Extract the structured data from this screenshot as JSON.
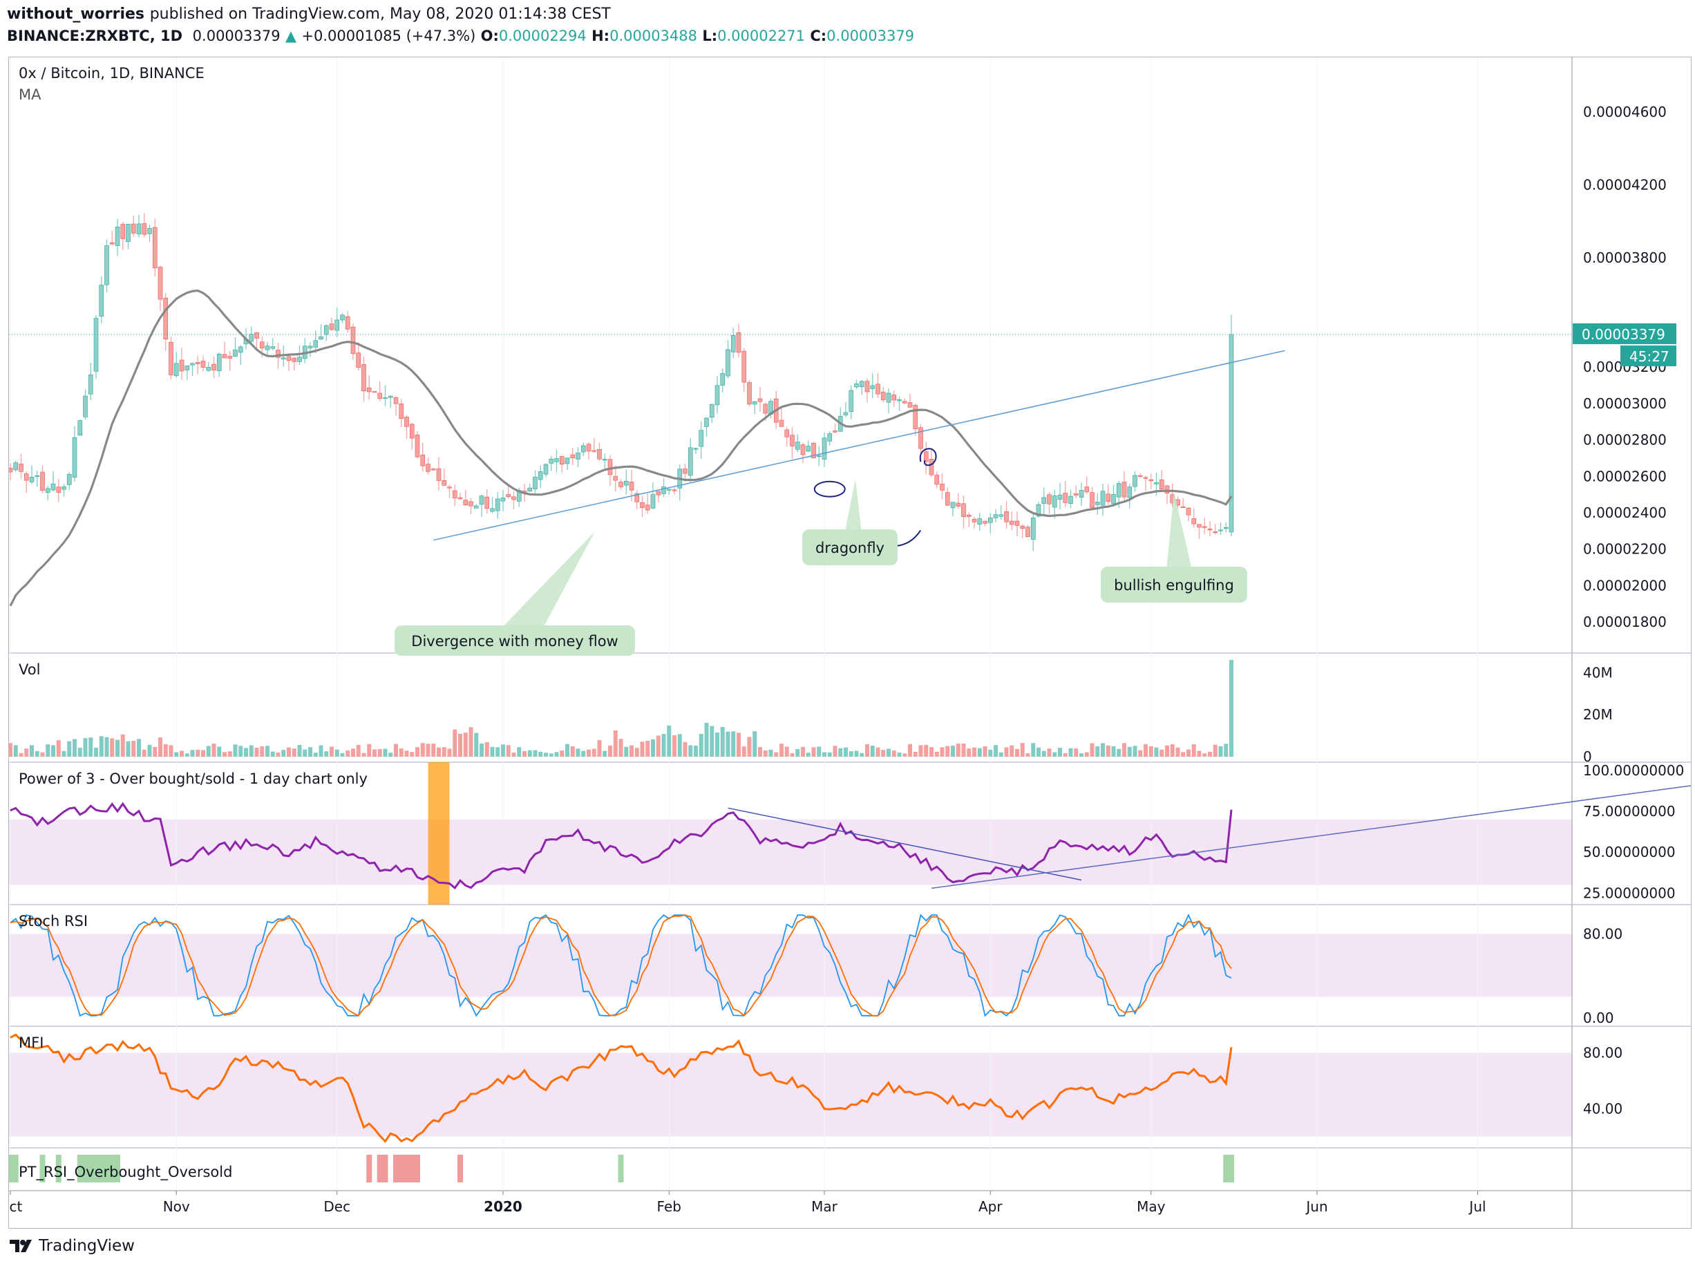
{
  "header": {
    "publisher": "without_worries",
    "published_text": "published on TradingView.com, May 08, 2020 01:14:38 CEST",
    "symbol": "BINANCE:ZRXBTC, 1D",
    "last": "0.00003379",
    "change": "+0.00001085 (+47.3%)",
    "o_label": "O:",
    "o": "0.00002294",
    "h_label": "H:",
    "h": "0.00003488",
    "l_label": "L:",
    "l": "0.00002271",
    "c_label": "C:",
    "c": "0.00003379"
  },
  "footer": {
    "brand": "TradingView"
  },
  "chart_data": {
    "type": "candlestick",
    "title": "0x / Bitcoin, 1D, BINANCE",
    "overlay_label": "MA",
    "price_axis": {
      "ticks": [
        "0.00004600",
        "0.00004200",
        "0.00003800",
        "0.00003200",
        "0.00003000",
        "0.00002800",
        "0.00002600",
        "0.00002400",
        "0.00002200",
        "0.00002000",
        "0.00001800"
      ],
      "tick_values": [
        4.6,
        4.2,
        3.8,
        3.2,
        3.0,
        2.8,
        2.6,
        2.4,
        2.2,
        2.0,
        1.8
      ],
      "range": [
        1.63,
        4.9
      ],
      "unit_multiplier": "1e-5",
      "last_price_label": "0.00003379",
      "last_price": 3.379,
      "countdown": "45:27"
    },
    "x_axis": {
      "labels": [
        "Oct",
        "Nov",
        "Dec",
        "2020",
        "Feb",
        "Mar",
        "Apr",
        "May",
        "Jun",
        "Jul"
      ],
      "label_day_index": [
        0,
        31,
        61,
        92,
        123,
        152,
        183,
        213,
        244,
        274
      ]
    },
    "candles_summary": {
      "first_date": "Oct 1, 2019",
      "anchors": [
        [
          0,
          2.66
        ],
        [
          10,
          2.5
        ],
        [
          15,
          3.2
        ],
        [
          18,
          3.9
        ],
        [
          22,
          3.95
        ],
        [
          26,
          3.95
        ],
        [
          30,
          3.2
        ],
        [
          38,
          3.2
        ],
        [
          45,
          3.4
        ],
        [
          52,
          3.2
        ],
        [
          58,
          3.4
        ],
        [
          62,
          3.5
        ],
        [
          66,
          3.1
        ],
        [
          72,
          3.0
        ],
        [
          78,
          2.62
        ],
        [
          84,
          2.48
        ],
        [
          94,
          2.44
        ],
        [
          99,
          2.65
        ],
        [
          106,
          2.75
        ],
        [
          111,
          2.68
        ],
        [
          118,
          2.44
        ],
        [
          124,
          2.55
        ],
        [
          130,
          2.88
        ],
        [
          135,
          3.35
        ],
        [
          138,
          3.02
        ],
        [
          142,
          2.98
        ],
        [
          146,
          2.8
        ],
        [
          150,
          2.7
        ],
        [
          154,
          2.85
        ],
        [
          158,
          3.1
        ],
        [
          163,
          3.05
        ],
        [
          167,
          3.02
        ],
        [
          170,
          2.78
        ],
        [
          174,
          2.5
        ],
        [
          180,
          2.35
        ],
        [
          186,
          2.35
        ],
        [
          190,
          2.3
        ],
        [
          193,
          2.48
        ],
        [
          197,
          2.5
        ],
        [
          203,
          2.46
        ],
        [
          210,
          2.56
        ],
        [
          214,
          2.55
        ],
        [
          218,
          2.4
        ],
        [
          222,
          2.36
        ],
        [
          227,
          2.29
        ],
        [
          228,
          3.379
        ]
      ],
      "last_candle": {
        "open": 2.294,
        "high": 3.488,
        "low": 2.271,
        "close": 3.379
      }
    },
    "annotations": [
      {
        "text": "Divergence with money flow"
      },
      {
        "text": "dragonfly"
      },
      {
        "text": "bullish engulfing"
      }
    ],
    "volume_panel": {
      "label": "Vol",
      "ticks": [
        "40M",
        "20M",
        "0"
      ],
      "tick_values": [
        40,
        20,
        0
      ],
      "range": [
        0,
        46
      ],
      "last_bar": 46,
      "spike_period_value": 18
    },
    "power_panel": {
      "label": "Power of 3 - Over bought/sold - 1 day chart only",
      "ticks": [
        "100.00000000",
        "75.00000000",
        "50.00000000",
        "25.00000000"
      ],
      "tick_values": [
        100,
        75,
        50,
        25
      ],
      "range": [
        18,
        105
      ],
      "band": [
        30,
        70
      ],
      "series_anchors": [
        [
          0,
          76
        ],
        [
          5,
          68
        ],
        [
          10,
          74
        ],
        [
          15,
          76
        ],
        [
          20,
          78
        ],
        [
          25,
          72
        ],
        [
          28,
          72
        ],
        [
          30,
          44
        ],
        [
          38,
          52
        ],
        [
          45,
          56
        ],
        [
          52,
          50
        ],
        [
          58,
          58
        ],
        [
          62,
          48
        ],
        [
          68,
          42
        ],
        [
          75,
          38
        ],
        [
          80,
          30
        ],
        [
          85,
          30
        ],
        [
          90,
          36
        ],
        [
          96,
          40
        ],
        [
          100,
          55
        ],
        [
          106,
          62
        ],
        [
          112,
          52
        ],
        [
          118,
          44
        ],
        [
          124,
          56
        ],
        [
          130,
          64
        ],
        [
          135,
          76
        ],
        [
          140,
          58
        ],
        [
          146,
          52
        ],
        [
          152,
          58
        ],
        [
          155,
          66
        ],
        [
          160,
          56
        ],
        [
          166,
          54
        ],
        [
          170,
          46
        ],
        [
          176,
          34
        ],
        [
          182,
          38
        ],
        [
          188,
          38
        ],
        [
          192,
          44
        ],
        [
          196,
          58
        ],
        [
          200,
          54
        ],
        [
          206,
          52
        ],
        [
          210,
          50
        ],
        [
          214,
          62
        ],
        [
          217,
          48
        ],
        [
          221,
          52
        ],
        [
          224,
          44
        ],
        [
          227,
          43
        ],
        [
          228,
          76
        ]
      ],
      "highlight_day_range": [
        78,
        82
      ],
      "highlight_color": "#ff9800"
    },
    "stoch_panel": {
      "label": "Stoch RSI",
      "ticks": [
        "80.00",
        "0.00"
      ],
      "tick_values": [
        80,
        0
      ],
      "range": [
        -8,
        108
      ],
      "band": [
        20,
        80
      ],
      "k_color": "#2196f3",
      "d_color": "#ff6d00"
    },
    "mfi_panel": {
      "label": "MFI",
      "ticks": [
        "80.00",
        "40.00"
      ],
      "tick_values": [
        80,
        40
      ],
      "range": [
        12,
        99
      ],
      "band": [
        20,
        80
      ],
      "series_anchors": [
        [
          0,
          92
        ],
        [
          6,
          84
        ],
        [
          10,
          76
        ],
        [
          14,
          80
        ],
        [
          18,
          84
        ],
        [
          22,
          86
        ],
        [
          26,
          80
        ],
        [
          30,
          56
        ],
        [
          34,
          48
        ],
        [
          38,
          54
        ],
        [
          42,
          76
        ],
        [
          46,
          74
        ],
        [
          50,
          70
        ],
        [
          54,
          62
        ],
        [
          58,
          58
        ],
        [
          62,
          64
        ],
        [
          64,
          46
        ],
        [
          66,
          28
        ],
        [
          70,
          20
        ],
        [
          76,
          20
        ],
        [
          80,
          32
        ],
        [
          84,
          44
        ],
        [
          88,
          52
        ],
        [
          92,
          60
        ],
        [
          96,
          66
        ],
        [
          100,
          56
        ],
        [
          104,
          62
        ],
        [
          108,
          72
        ],
        [
          112,
          80
        ],
        [
          116,
          84
        ],
        [
          120,
          70
        ],
        [
          124,
          64
        ],
        [
          128,
          76
        ],
        [
          132,
          82
        ],
        [
          136,
          86
        ],
        [
          140,
          64
        ],
        [
          146,
          60
        ],
        [
          152,
          42
        ],
        [
          156,
          38
        ],
        [
          160,
          48
        ],
        [
          164,
          56
        ],
        [
          168,
          52
        ],
        [
          172,
          48
        ],
        [
          176,
          46
        ],
        [
          180,
          42
        ],
        [
          184,
          44
        ],
        [
          186,
          34
        ],
        [
          190,
          36
        ],
        [
          194,
          44
        ],
        [
          198,
          56
        ],
        [
          202,
          52
        ],
        [
          206,
          46
        ],
        [
          210,
          50
        ],
        [
          214,
          56
        ],
        [
          217,
          64
        ],
        [
          220,
          66
        ],
        [
          224,
          62
        ],
        [
          227,
          60
        ],
        [
          228,
          84
        ]
      ]
    },
    "pt_rsi_panel": {
      "label": "PT_RSI_Overbought_Oversold",
      "green_day_ranges": [
        [
          0,
          1
        ],
        [
          6,
          6
        ],
        [
          9,
          9
        ],
        [
          13,
          20
        ],
        [
          114,
          114
        ],
        [
          227,
          228
        ]
      ],
      "red_day_ranges": [
        [
          67,
          67
        ],
        [
          69,
          70
        ],
        [
          72,
          76
        ],
        [
          84,
          84
        ]
      ],
      "green_color": "#a5d6a7",
      "red_color": "#ef9a9a"
    },
    "colors": {
      "up": "#26a69a",
      "down": "#ef5350",
      "ma": "#888888",
      "trendline": "#5b9bd5",
      "band": "#f3e5f5",
      "power_line": "#8e24aa",
      "mfi_line": "#ff6d00",
      "callout": "#c8e6c9",
      "pen": "#1a237e"
    }
  }
}
